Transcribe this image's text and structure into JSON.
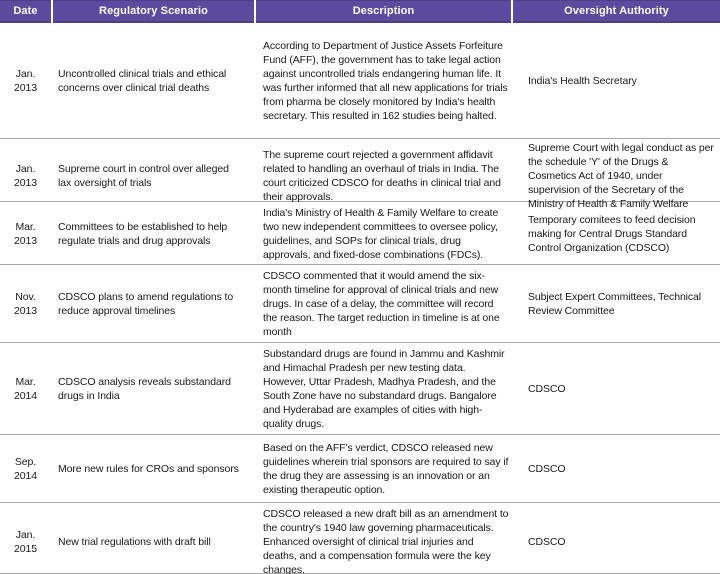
{
  "colors": {
    "header_bg": "#5b4b9e",
    "header_border": "#4d3f8a",
    "header_text": "#ffffff",
    "row_border": "#a6a6a6",
    "body_text": "#1a1a1a"
  },
  "table": {
    "columns": [
      {
        "label": "Date"
      },
      {
        "label": "Regulatory Scenario"
      },
      {
        "label": "Description"
      },
      {
        "label": "Oversight Authority"
      }
    ],
    "rows": [
      {
        "date": "Jan.\n2013",
        "scenario": "Uncontrolled clinical trials and ethical concerns over clinical trial deaths",
        "description": "According to Department of Justice Assets Forfeiture Fund (AFF), the government has to take legal action against uncontrolled trials endangering human life. It was further informed that all new applications for trials from pharma be closely monitored by India's health secretary. This resulted in 162 studies being halted.",
        "authority": "India's Health Secretary"
      },
      {
        "date": "Jan.\n2013",
        "scenario": "Supreme court in control over alleged lax oversight of trials",
        "description": "The supreme court rejected a government affidavit related to handling an overhaul of trials in India. The court criticized CDSCO for deaths in clinical trial and their approvals.",
        "authority": "Supreme Court with legal conduct as per the schedule 'Y' of the Drugs & Cosmetics Act of 1940, under supervision of the Secretary of the Ministry of Health & Family Welfare"
      },
      {
        "date": "Mar.\n2013",
        "scenario": "Committees to be established to help regulate trials and drug approvals",
        "description": "India's Ministry of Health & Family Welfare to create two new independent committees to oversee policy, guidelines, and SOPs for clinical trials, drug approvals, and fixed-dose combinations (FDCs).",
        "authority": "Temporary comitees to feed decision making for Central Drugs Standard Control Organization (CDSCO)"
      },
      {
        "date": "Nov.\n2013",
        "scenario": "CDSCO plans to amend regulations to reduce approval timelines",
        "description": "CDSCO commented that it would amend the six-month timeline for approval of clinical trials and new drugs. In case of a delay, the committee will record the reason. The target reduction in timeline is at one month",
        "authority": "Subject Expert Committees, Technical Review Committee"
      },
      {
        "date": "Mar.\n2014",
        "scenario": "CDSCO analysis reveals substandard drugs in India",
        "description": "Substandard drugs are found in Jammu and Kashmir and Himachal Pradesh per new testing data. However, Uttar Pradesh, Madhya Pradesh, and the South Zone have no substandard drugs. Bangalore and Hyderabad are examples of cities with high-quality drugs.",
        "authority": "CDSCO"
      },
      {
        "date": "Sep.\n2014",
        "scenario": "More new rules for CROs and sponsors",
        "description": "Based on the AFF's verdict, CDSCO released new guidelines wherein trial sponsors are required to say if the drug they are assessing is an innovation or an existing therapeutic option.",
        "authority": "CDSCO"
      },
      {
        "date": "Jan.\n2015",
        "scenario": "New trial regulations with draft bill",
        "description": "CDSCO released a new draft bill as an amendment to the country's 1940 law governing pharmaceuticals. Enhanced oversight of clinical trial injuries and deaths, and a compensation formula were the key changes.",
        "authority": "CDSCO"
      }
    ]
  }
}
